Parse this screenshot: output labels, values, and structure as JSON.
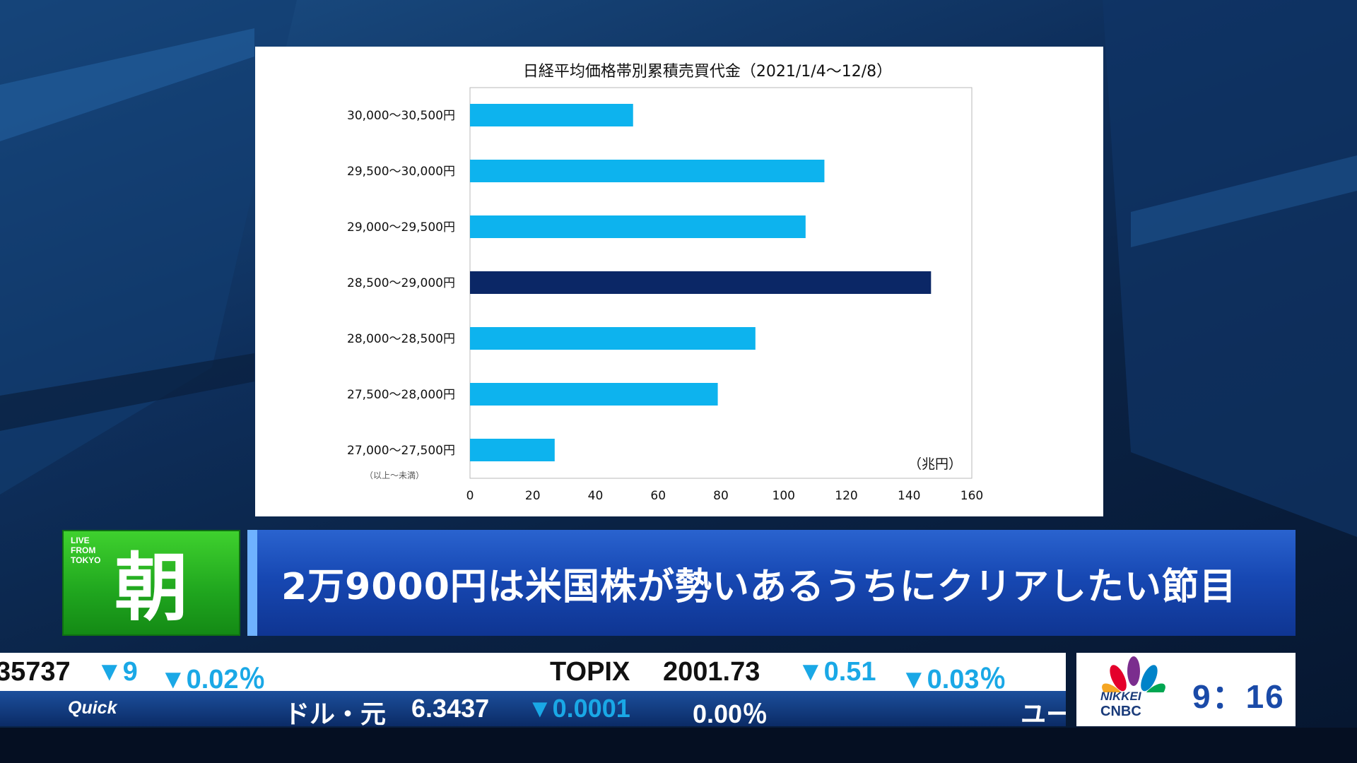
{
  "chart_data": {
    "type": "bar",
    "orientation": "horizontal",
    "title": "日経平均価格帯別累積売買代金（2021/1/4～12/8）",
    "categories": [
      "30,000～30,500円",
      "29,500～30,000円",
      "29,000～29,500円",
      "28,500～29,000円",
      "28,000～28,500円",
      "27,500～28,000円",
      "27,000～27,500円"
    ],
    "values": [
      52,
      113,
      107,
      147,
      91,
      79,
      27
    ],
    "highlight_index": 3,
    "bar_color": "#0db3ee",
    "highlight_color": "#0b2766",
    "xlim": [
      0,
      160
    ],
    "xticks": [
      0,
      20,
      40,
      60,
      80,
      100,
      120,
      140,
      160
    ],
    "unit": "（兆円）",
    "note": "（以上～未満）",
    "grid": false
  },
  "banner": {
    "live_text": "LIVE\nFROM\nTOKYO",
    "kanji": "朝",
    "headline": "2万9000円は米国株が勢いあるうちにクリアしたい節目"
  },
  "ticker": {
    "top": {
      "prev_value": "35737",
      "prev_change": "▼9",
      "prev_pct": "▼0.02％",
      "name": "TOPIX",
      "value": "2001.73",
      "change": "▼0.51",
      "pct": "▼0.03％"
    },
    "bottom": {
      "source": "Quick",
      "name": "ドル・元",
      "value": "6.3437",
      "change": "▼0.0001",
      "pct": "0.00％",
      "next": "ユー"
    }
  },
  "logo": {
    "nikkei": "NIKKEI",
    "cnbc": "CNBC",
    "time": "9：16"
  }
}
